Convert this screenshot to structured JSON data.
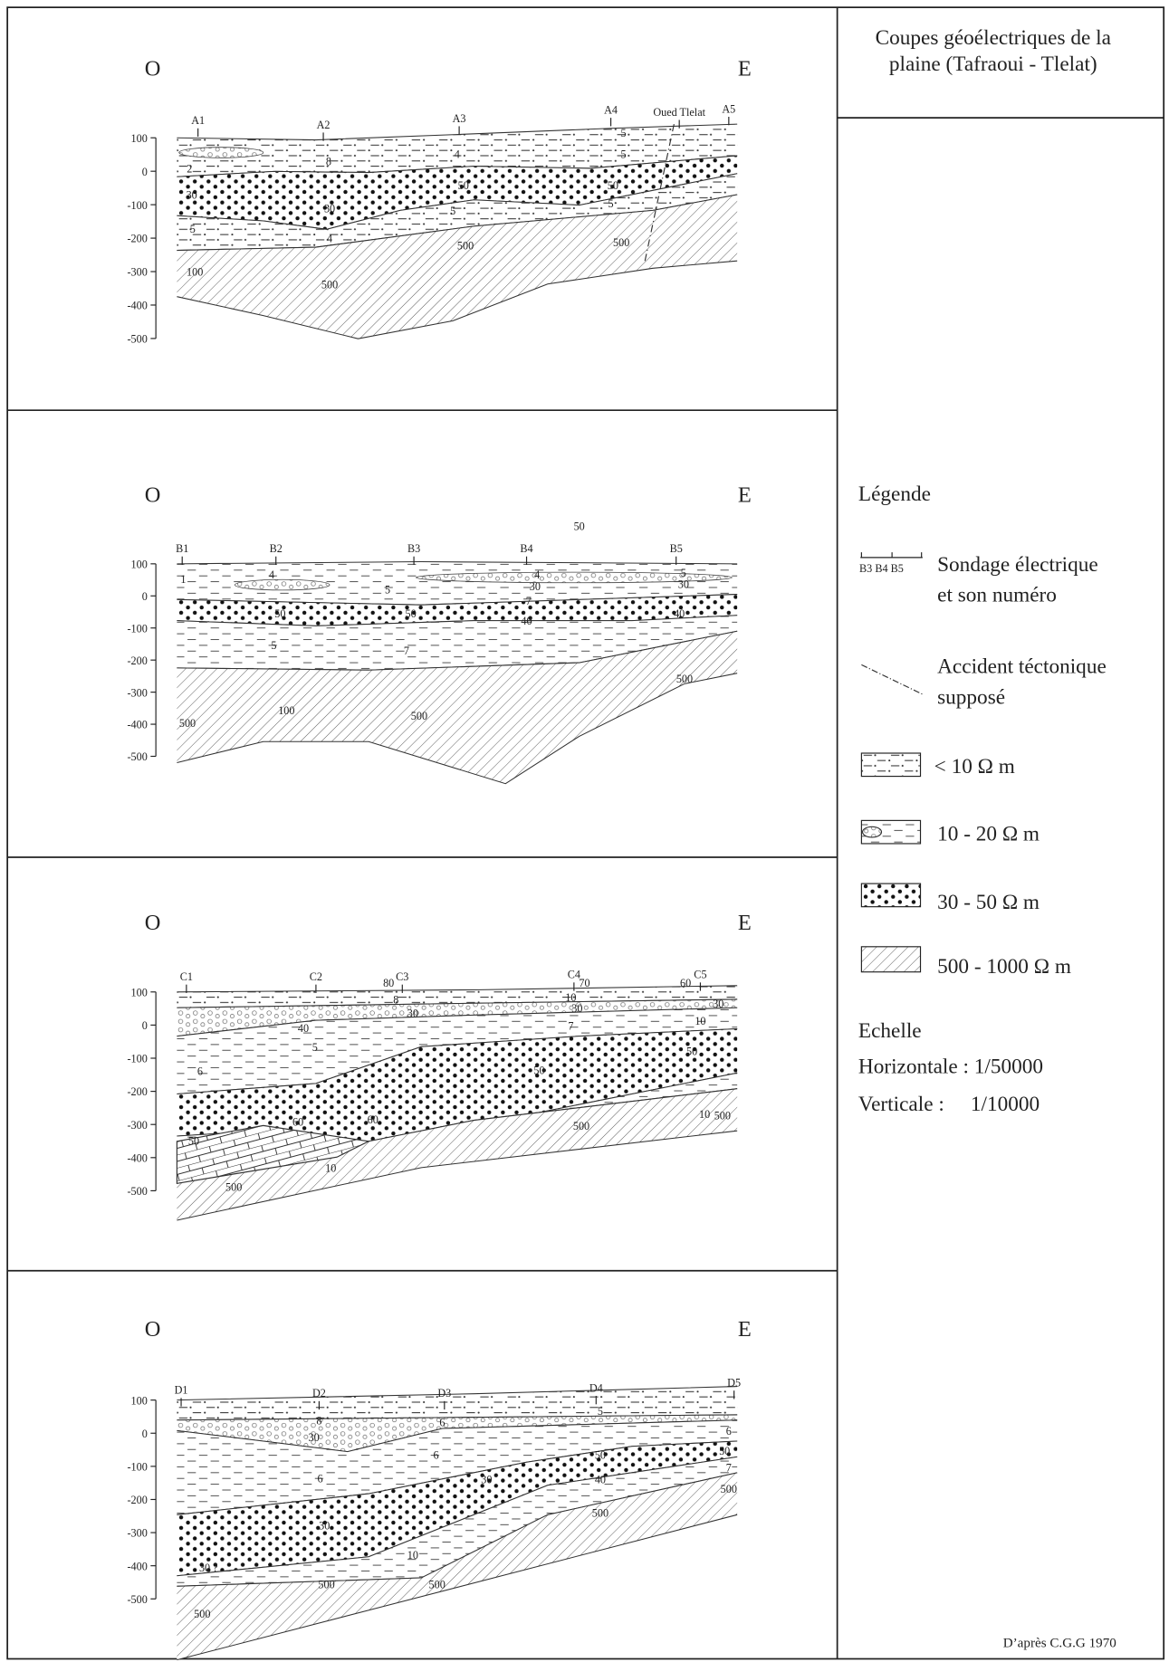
{
  "header": {
    "title_lines": [
      "Coupes géoélectriques de la",
      "plaine (Tafraoui - Tlelat)"
    ]
  },
  "panels": [
    {
      "west": "O",
      "east": "E",
      "depth_ticks": [
        100,
        0,
        -100,
        -200,
        -300,
        -400,
        -500
      ],
      "soundings": [
        "A1",
        "A2",
        "A3",
        "A4",
        "Oued Tlelat",
        "A5"
      ],
      "values": [
        "2",
        "8",
        "4",
        "5",
        "5",
        "30",
        "30",
        "50",
        "50",
        "5",
        "5",
        "4",
        "5",
        "500",
        "500",
        "100",
        "500"
      ]
    },
    {
      "west": "O",
      "east": "E",
      "depth_ticks": [
        100,
        0,
        -100,
        -200,
        -300,
        -400,
        -500
      ],
      "soundings": [
        "B1",
        "B2",
        "B3",
        "B4",
        "B5"
      ],
      "values": [
        "1",
        "4",
        "5",
        "4",
        "30",
        "5",
        "30",
        "7",
        "50",
        "50",
        "40",
        "40",
        "5",
        "7",
        "500",
        "500",
        "100",
        "500",
        "50"
      ]
    },
    {
      "west": "O",
      "east": "E",
      "depth_ticks": [
        100,
        0,
        -100,
        -200,
        -300,
        -400,
        -500
      ],
      "soundings": [
        "C1",
        "C2",
        "C3",
        "C4",
        "C5"
      ],
      "values": [
        "80",
        "70",
        "60",
        "8",
        "10",
        "40",
        "30",
        "30",
        "30",
        "7",
        "10",
        "5",
        "6",
        "50",
        "50",
        "60",
        "60",
        "50",
        "10",
        "500",
        "500",
        "10",
        "500"
      ]
    },
    {
      "west": "O",
      "east": "E",
      "depth_ticks": [
        100,
        0,
        -100,
        -200,
        -300,
        -400,
        -500
      ],
      "soundings": [
        "D1",
        "D2",
        "D3",
        "D4",
        "D5"
      ],
      "values": [
        "5",
        "8",
        "6",
        "6",
        "30",
        "6",
        "50",
        "50",
        "7",
        "6",
        "30",
        "40",
        "500",
        "500",
        "30",
        "30 ?",
        "10",
        "500",
        "500",
        "500"
      ]
    }
  ],
  "legend": {
    "title": "Légende",
    "sounding_symbol": "B3  B4  B5",
    "sounding_lines": [
      "Sondage électrique",
      "et son numéro"
    ],
    "fault_lines": [
      "Accident téctonique",
      "supposé"
    ],
    "classes": [
      "< 10 Ω m",
      "10 - 20 Ω m",
      "30 - 50 Ω m",
      "500 - 1000 Ω m"
    ]
  },
  "scale": {
    "title": "Echelle",
    "horizontal": "Horizontale : 1/50000",
    "vertical": "Verticale :     1/10000"
  },
  "source": "D’après C.G.G 1970"
}
